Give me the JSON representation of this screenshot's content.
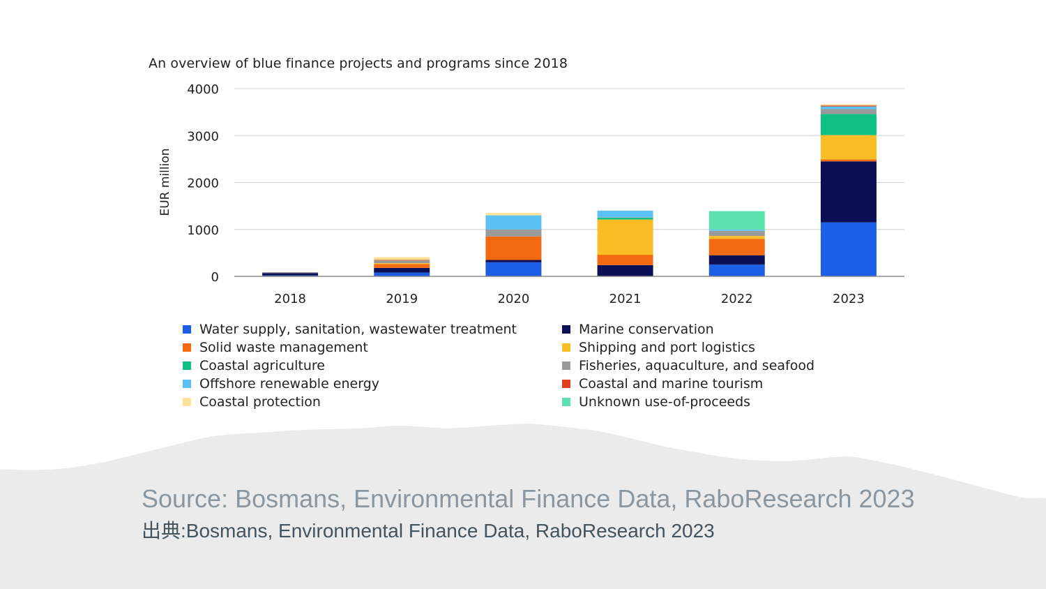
{
  "chart_data": {
    "type": "bar",
    "stacked": true,
    "title": "An overview of blue finance projects and programs since 2018",
    "ylabel": "EUR million",
    "xlabel": "",
    "ylim": [
      0,
      4000
    ],
    "yticks": [
      0,
      1000,
      2000,
      3000,
      4000
    ],
    "grid": true,
    "legend_position": "bottom",
    "categories": [
      "2018",
      "2019",
      "2020",
      "2021",
      "2022",
      "2023"
    ],
    "series": [
      {
        "name": "Water supply, sanitation, wastewater treatment",
        "color": "#1a5fe6",
        "values": [
          20,
          80,
          300,
          0,
          250,
          1150
        ]
      },
      {
        "name": "Marine conservation",
        "color": "#0b0f55",
        "values": [
          50,
          100,
          50,
          240,
          200,
          1300
        ]
      },
      {
        "name": "Solid waste management",
        "color": "#f46a10",
        "values": [
          0,
          80,
          500,
          220,
          350,
          40
        ]
      },
      {
        "name": "Shipping and port logistics",
        "color": "#fbbd25",
        "values": [
          0,
          20,
          0,
          750,
          60,
          520
        ]
      },
      {
        "name": "Coastal agriculture",
        "color": "#0fbf84",
        "values": [
          0,
          0,
          0,
          40,
          0,
          450
        ]
      },
      {
        "name": "Fisheries, aquaculture, and seafood",
        "color": "#9a9a9a",
        "values": [
          20,
          60,
          150,
          10,
          110,
          100
        ]
      },
      {
        "name": "Offshore renewable energy",
        "color": "#5cc2f4",
        "values": [
          0,
          0,
          300,
          140,
          30,
          60
        ]
      },
      {
        "name": "Coastal and marine tourism",
        "color": "#e03c1e",
        "values": [
          0,
          10,
          0,
          0,
          0,
          20
        ]
      },
      {
        "name": "Coastal protection",
        "color": "#fde19a",
        "values": [
          0,
          60,
          50,
          0,
          0,
          30
        ]
      },
      {
        "name": "Unknown use-of-proceeds",
        "color": "#5ce0b0",
        "values": [
          0,
          0,
          0,
          0,
          390,
          0
        ]
      }
    ]
  },
  "source_en": "Source: Bosmans, Environmental Finance Data, RaboResearch 2023",
  "source_ja": "出典:Bosmans, Environmental Finance Data, RaboResearch 2023"
}
